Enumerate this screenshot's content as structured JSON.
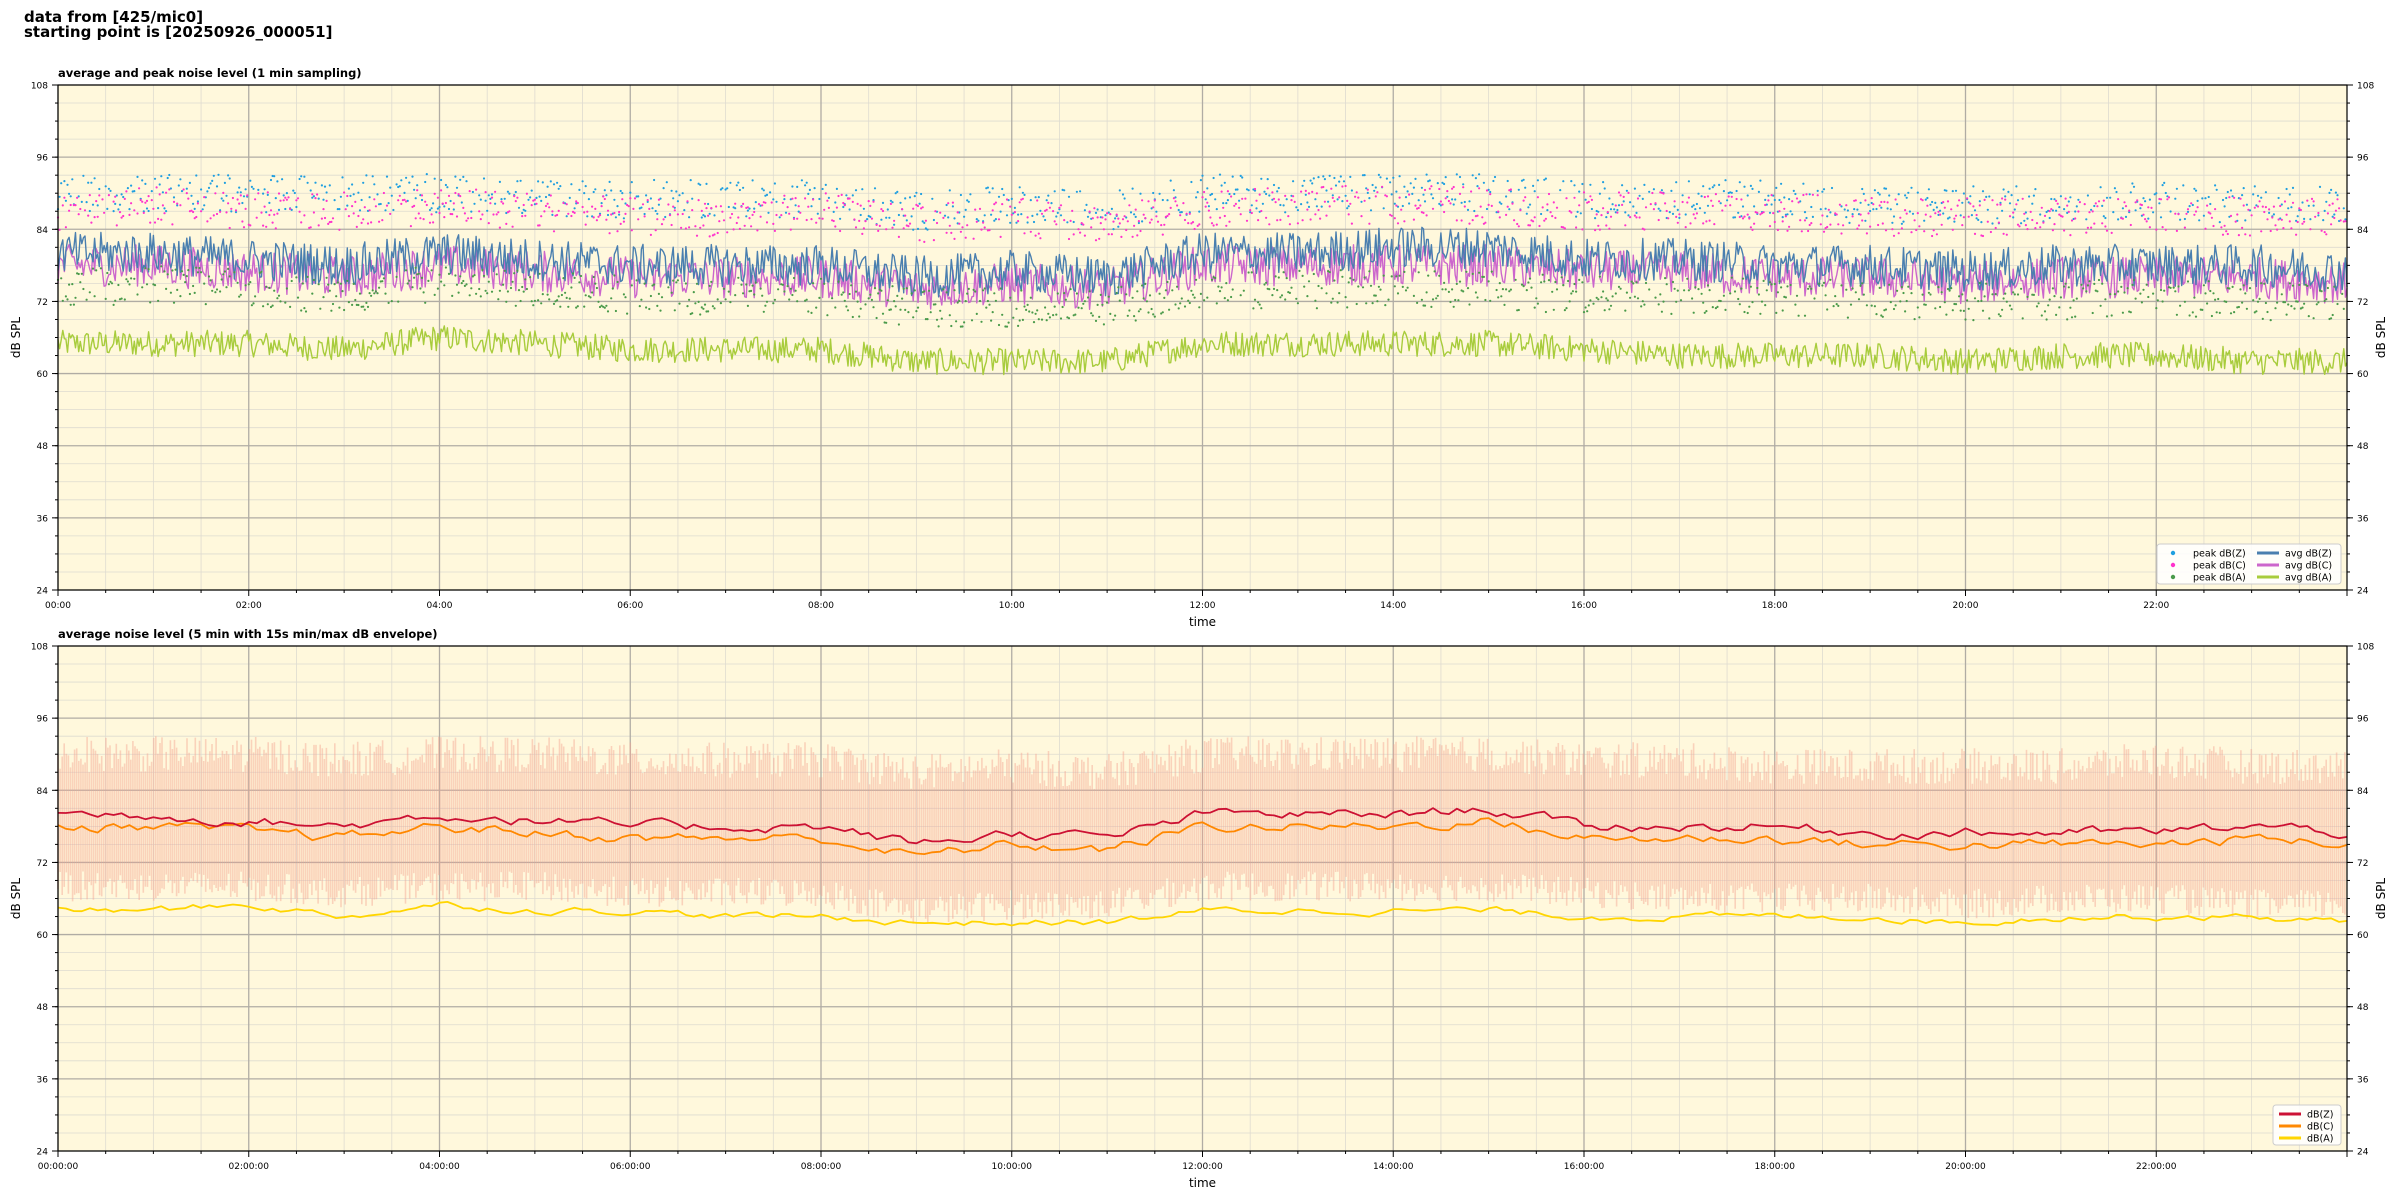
{
  "header": {
    "line1": "data from [425/mic0]",
    "line2": "starting point is [20250926_000051]"
  },
  "colors": {
    "plot_bg": "#fff8dc",
    "peak_z": "#1f9fe0",
    "peak_c": "#ff33cc",
    "peak_a": "#4a9a4a",
    "avg_z": "#4a7faf",
    "avg_c": "#cc66cc",
    "avg_a": "#a8cc3c",
    "dbz": "#cc1133",
    "dbc": "#ff8800",
    "dba": "#ffd500",
    "envelope": "#f4a490"
  },
  "chart_data": [
    {
      "type": "line",
      "title": "average and peak noise level (1 min sampling)",
      "xlabel": "time",
      "ylabel": "dB SPL",
      "ylim": [
        24,
        108
      ],
      "yticks": [
        "24",
        "36",
        "48",
        "60",
        "72",
        "84",
        "96",
        "108"
      ],
      "xlim_hours": [
        0,
        24
      ],
      "xtick_labels": [
        "00:00",
        "02:00",
        "04:00",
        "06:00",
        "08:00",
        "10:00",
        "12:00",
        "14:00",
        "16:00",
        "18:00",
        "20:00",
        "22:00"
      ],
      "grid": true,
      "legend_placement": "lower-right",
      "x_hours": [
        0,
        1,
        2,
        3,
        4,
        5,
        6,
        7,
        8,
        9,
        10,
        11,
        12,
        13,
        14,
        15,
        16,
        17,
        18,
        19,
        20,
        21,
        22,
        23,
        24
      ],
      "series": [
        {
          "name": "peak dB(Z)",
          "style": "dots",
          "values": [
            90,
            90,
            90,
            90,
            90,
            89,
            89,
            89,
            89,
            87,
            88,
            87,
            90,
            90,
            90,
            90,
            89,
            89,
            89,
            88,
            88,
            88,
            89,
            88,
            88
          ]
        },
        {
          "name": "peak dB(C)",
          "style": "dots",
          "values": [
            87,
            88,
            87,
            87,
            88,
            87,
            86,
            86,
            87,
            85,
            86,
            85,
            87,
            88,
            88,
            88,
            87,
            87,
            87,
            86,
            86,
            86,
            87,
            86,
            86
          ]
        },
        {
          "name": "peak dB(A)",
          "style": "dots",
          "values": [
            74,
            75,
            74,
            73,
            75,
            74,
            73,
            73,
            73,
            71,
            71,
            71,
            74,
            74,
            74,
            74,
            73,
            73,
            73,
            72,
            72,
            72,
            73,
            72,
            72
          ]
        },
        {
          "name": "avg dB(Z)",
          "style": "line",
          "values": [
            80,
            80,
            79,
            78,
            80,
            79,
            78,
            78,
            78,
            76,
            77,
            76,
            80,
            80,
            81,
            81,
            79,
            79,
            78,
            78,
            77,
            78,
            78,
            78,
            77
          ]
        },
        {
          "name": "avg dB(C)",
          "style": "line",
          "values": [
            78,
            78,
            77,
            76,
            78,
            77,
            76,
            76,
            76,
            74,
            75,
            74,
            78,
            78,
            78,
            78,
            77,
            77,
            76,
            76,
            75,
            76,
            76,
            76,
            75
          ]
        },
        {
          "name": "avg dB(A)",
          "style": "line",
          "values": [
            65,
            65,
            65,
            64,
            66,
            65,
            64,
            64,
            64,
            62,
            62,
            62,
            65,
            65,
            65,
            65,
            64,
            63,
            63,
            63,
            62,
            63,
            63,
            62,
            62
          ]
        }
      ]
    },
    {
      "type": "line",
      "title": "average noise level (5 min with 15s min/max dB envelope)",
      "xlabel": "time",
      "ylabel": "dB SPL",
      "ylim": [
        24,
        108
      ],
      "yticks": [
        "24",
        "36",
        "48",
        "60",
        "72",
        "84",
        "96",
        "108"
      ],
      "xlim_hours": [
        0,
        24
      ],
      "xtick_labels": [
        "00:00:00",
        "02:00:00",
        "04:00:00",
        "06:00:00",
        "08:00:00",
        "10:00:00",
        "12:00:00",
        "14:00:00",
        "16:00:00",
        "18:00:00",
        "20:00:00",
        "22:00:00"
      ],
      "grid": true,
      "legend_placement": "lower-right",
      "x_hours": [
        0,
        1,
        2,
        3,
        4,
        5,
        6,
        7,
        8,
        9,
        10,
        11,
        12,
        13,
        14,
        15,
        16,
        17,
        18,
        19,
        20,
        21,
        22,
        23,
        24
      ],
      "envelope": {
        "upper": [
          90,
          90,
          90,
          89,
          90,
          90,
          89,
          89,
          89,
          87,
          88,
          87,
          90,
          90,
          90,
          90,
          89,
          89,
          88,
          88,
          88,
          88,
          89,
          88,
          88
        ],
        "lower": [
          68,
          68,
          68,
          67,
          68,
          68,
          67,
          67,
          67,
          64,
          65,
          65,
          68,
          68,
          68,
          68,
          67,
          66,
          66,
          66,
          65,
          66,
          66,
          65,
          65
        ]
      },
      "series": [
        {
          "name": "dB(Z)",
          "style": "line",
          "values": [
            80,
            80,
            79,
            78,
            80,
            79,
            78,
            78,
            78,
            75,
            77,
            76,
            80,
            80,
            80,
            81,
            78,
            78,
            78,
            77,
            77,
            77,
            77,
            78,
            77
          ]
        },
        {
          "name": "dB(C)",
          "style": "line",
          "values": [
            78,
            78,
            77,
            76,
            78,
            77,
            76,
            76,
            76,
            73,
            75,
            74,
            78,
            78,
            78,
            79,
            76,
            76,
            76,
            75,
            75,
            75,
            75,
            76,
            75
          ]
        },
        {
          "name": "dB(A)",
          "style": "line",
          "values": [
            64,
            64,
            65,
            63,
            65,
            64,
            64,
            63,
            63,
            62,
            62,
            62,
            64,
            64,
            64,
            64,
            63,
            63,
            63,
            63,
            62,
            63,
            63,
            63,
            62
          ]
        }
      ]
    }
  ]
}
